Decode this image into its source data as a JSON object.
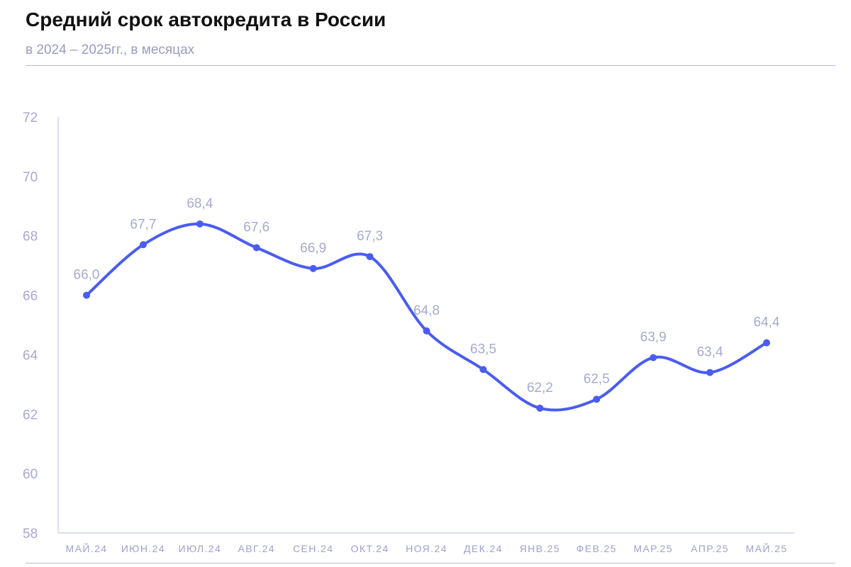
{
  "header": {
    "title": "Средний срок автокредита в России",
    "subtitle": "в 2024 – 2025гг., в месяцах"
  },
  "colors": {
    "line": "#4a5cf2",
    "axis": "#b9bce0",
    "label": "#a7a9d0"
  },
  "chart_data": {
    "type": "line",
    "title": "Средний срок автокредита в России",
    "subtitle": "в 2024 – 2025гг., в месяцах",
    "xlabel": "",
    "ylabel": "",
    "categories": [
      "МАЙ.24",
      "ИЮН.24",
      "ИЮЛ.24",
      "АВГ.24",
      "СЕН.24",
      "ОКТ.24",
      "НОЯ.24",
      "ДЕК.24",
      "ЯНВ.25",
      "ФЕВ.25",
      "МАР.25",
      "АПР.25",
      "МАЙ.25"
    ],
    "series": [
      {
        "values": [
          66.0,
          67.7,
          68.4,
          67.6,
          66.9,
          67.3,
          64.8,
          63.5,
          62.2,
          62.5,
          63.9,
          63.4,
          64.4
        ],
        "labels": [
          "66,0",
          "67,7",
          "68,4",
          "67,6",
          "66,9",
          "67,3",
          "64,8",
          "63,5",
          "62,2",
          "62,5",
          "63,9",
          "63,4",
          "64,4"
        ]
      }
    ],
    "ylim": [
      58,
      72
    ],
    "yticks": [
      "58",
      "60",
      "62",
      "64",
      "66",
      "68",
      "70",
      "72"
    ],
    "grid": false,
    "legend": "none"
  }
}
